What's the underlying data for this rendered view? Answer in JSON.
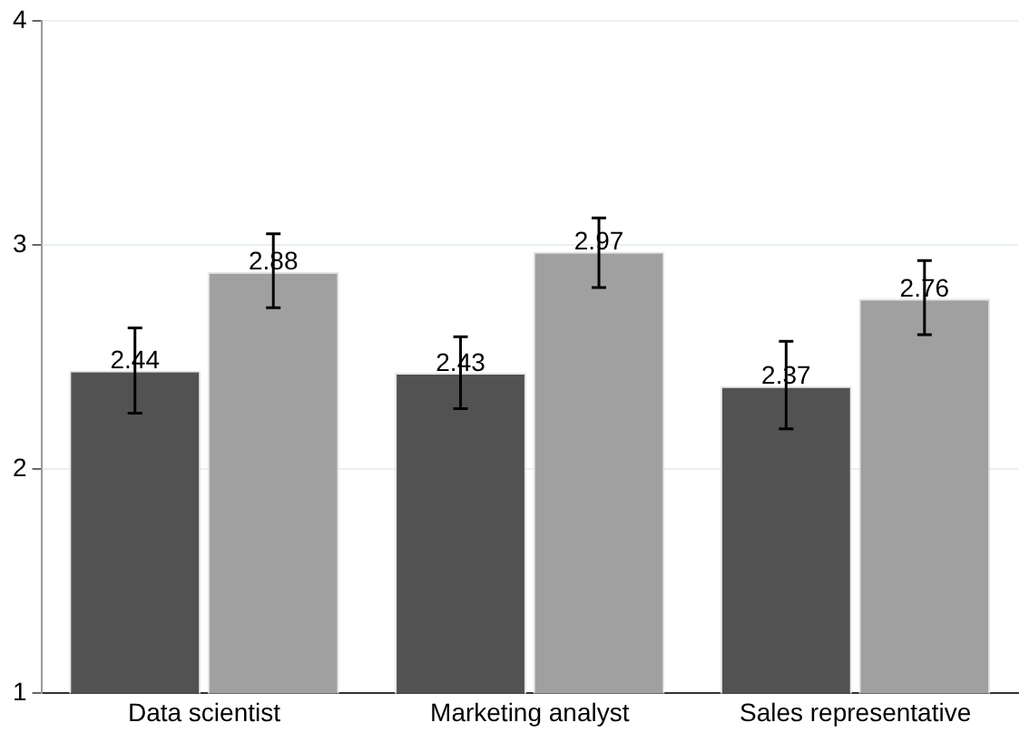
{
  "chart_data": {
    "type": "bar",
    "categories": [
      "Data scientist",
      "Marketing analyst",
      "Sales representative"
    ],
    "series": [
      {
        "color": "#525252",
        "values": [
          2.44,
          2.43,
          2.37
        ],
        "errors": [
          [
            2.25,
            2.63
          ],
          [
            2.27,
            2.59
          ],
          [
            2.18,
            2.57
          ]
        ]
      },
      {
        "color": "#a0a0a0",
        "values": [
          2.88,
          2.97,
          2.76
        ],
        "errors": [
          [
            2.72,
            3.05
          ],
          [
            2.81,
            3.12
          ],
          [
            2.6,
            2.93
          ]
        ]
      }
    ],
    "ylim": [
      1,
      4
    ],
    "yticks": [
      1,
      2,
      3,
      4
    ],
    "grid": "y",
    "data_labels": true,
    "legend": false
  }
}
